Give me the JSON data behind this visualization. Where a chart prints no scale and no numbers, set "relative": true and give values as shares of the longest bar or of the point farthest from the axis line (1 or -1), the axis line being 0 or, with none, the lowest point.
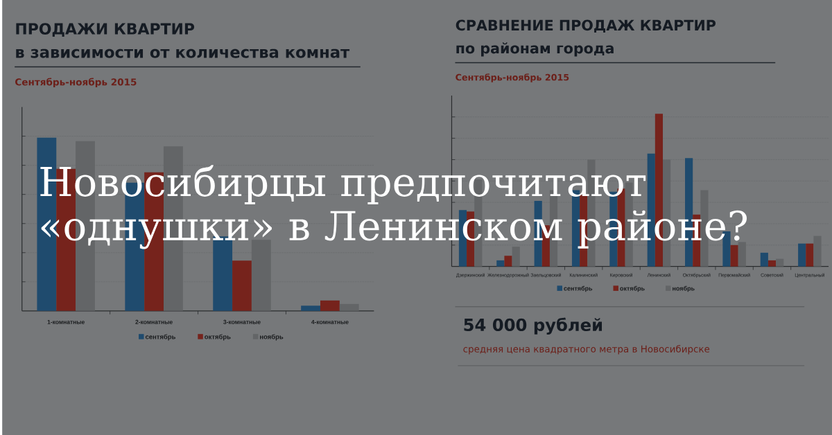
{
  "chart_data": [
    {
      "type": "bar",
      "title": "ПРОДАЖИ КВАРТИР",
      "subtitle": "в зависимости от количества комнат",
      "annotations": [
        "Сентябрь-ноябрь 2015"
      ],
      "categories": [
        "1-комнатные",
        "2-комнатные",
        "3-комнатные",
        "4-комнатные"
      ],
      "series": [
        {
          "name": "сентябрь",
          "color": "#1f4b6e",
          "values": [
            1.0,
            0.74,
            0.43,
            0.03
          ]
        },
        {
          "name": "октябрь",
          "color": "#76231c",
          "values": [
            0.82,
            0.8,
            0.29,
            0.06
          ]
        },
        {
          "name": "ноябрь",
          "color": "#636567",
          "values": [
            0.98,
            0.95,
            0.41,
            0.04
          ]
        }
      ],
      "relative": true,
      "grid": "y",
      "legend": "bottom"
    },
    {
      "type": "bar",
      "title": "СРАВНЕНИЕ ПРОДАЖ КВАРТИР",
      "subtitle": "по районам города",
      "annotations": [
        "Сентябрь-ноябрь 2015"
      ],
      "categories": [
        "Дзержинский",
        "Железнодорожный",
        "Заельцовский",
        "Калининский",
        "Кировский",
        "Ленинский",
        "Октябрьский",
        "Первомайский",
        "Советский",
        "Центральный"
      ],
      "series": [
        {
          "name": "сентябрь",
          "color": "#1f4b6e",
          "values": [
            0.37,
            0.04,
            0.43,
            0.5,
            0.49,
            0.74,
            0.71,
            0.23,
            0.09,
            0.15
          ]
        },
        {
          "name": "октябрь",
          "color": "#76231c",
          "values": [
            0.36,
            0.07,
            0.27,
            0.47,
            0.51,
            1.0,
            0.34,
            0.14,
            0.04,
            0.15
          ]
        },
        {
          "name": "ноябрь",
          "color": "#636567",
          "values": [
            0.57,
            0.13,
            0.5,
            0.7,
            0.55,
            0.7,
            0.5,
            0.16,
            0.05,
            0.2
          ]
        }
      ],
      "relative": true,
      "grid": "y",
      "legend": "bottom"
    },
    {
      "type": "other",
      "title": "54 000 рублей",
      "subtitle": "средняя цена квадратного метра в Новосибирске"
    },
    {
      "type": "other",
      "title": "Новосибирцы предпочитают «однушки» в Ленинском районе?"
    }
  ]
}
